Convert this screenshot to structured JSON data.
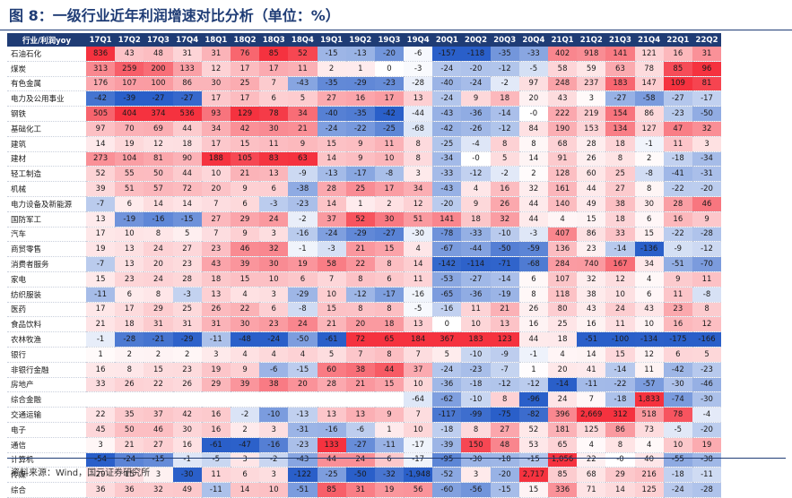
{
  "title": "图 8：一级行业近年利润增速对比分析（单位：%）",
  "corner_label": "行业/利润yoy",
  "source": "资料来源：Wind，国元证券研究所",
  "colors": {
    "header_bg": "#1f3c75",
    "pos_max": "#f5323f",
    "neg_max": "#2a5fc9"
  },
  "columns": [
    "17Q1",
    "17Q2",
    "17Q3",
    "17Q4",
    "18Q1",
    "18Q2",
    "18Q3",
    "18Q4",
    "19Q1",
    "19Q2",
    "19Q3",
    "19Q4",
    "20Q1",
    "20Q2",
    "20Q3",
    "20Q4",
    "21Q1",
    "21Q2",
    "21Q3",
    "21Q4",
    "22Q1",
    "22Q2"
  ],
  "rows": [
    {
      "name": "石油石化",
      "v": [
        "836",
        "43",
        "48",
        "31",
        "31",
        "76",
        "85",
        "52",
        "-15",
        "-13",
        "-20",
        "-6",
        "-157",
        "-118",
        "-35",
        "-33",
        "402",
        "918",
        "141",
        "121",
        "16",
        "31"
      ]
    },
    {
      "name": "煤炭",
      "v": [
        "313",
        "259",
        "200",
        "133",
        "12",
        "17",
        "17",
        "11",
        "2",
        "1",
        "0",
        "-3",
        "-24",
        "-20",
        "-12",
        "-5",
        "58",
        "59",
        "63",
        "78",
        "85",
        "96"
      ]
    },
    {
      "name": "有色金属",
      "v": [
        "176",
        "107",
        "100",
        "86",
        "30",
        "25",
        "7",
        "-43",
        "-35",
        "-29",
        "-23",
        "-28",
        "-40",
        "-24",
        "-2",
        "97",
        "248",
        "237",
        "183",
        "147",
        "109",
        "81"
      ]
    },
    {
      "name": "电力及公用事业",
      "v": [
        "-42",
        "-39",
        "-27",
        "-27",
        "17",
        "17",
        "6",
        "5",
        "27",
        "16",
        "17",
        "13",
        "-24",
        "9",
        "18",
        "20",
        "43",
        "3",
        "-27",
        "-58",
        "-27",
        "-17"
      ]
    },
    {
      "name": "钢铁",
      "v": [
        "505",
        "404",
        "374",
        "536",
        "93",
        "129",
        "78",
        "34",
        "-40",
        "-35",
        "-42",
        "-44",
        "-43",
        "-36",
        "-14",
        "-0",
        "222",
        "219",
        "154",
        "86",
        "-23",
        "-50"
      ]
    },
    {
      "name": "基础化工",
      "v": [
        "97",
        "70",
        "69",
        "44",
        "34",
        "42",
        "30",
        "21",
        "-24",
        "-22",
        "-25",
        "-68",
        "-42",
        "-26",
        "-12",
        "84",
        "190",
        "153",
        "134",
        "127",
        "47",
        "32"
      ]
    },
    {
      "name": "建筑",
      "v": [
        "14",
        "19",
        "12",
        "18",
        "17",
        "15",
        "11",
        "9",
        "15",
        "9",
        "11",
        "8",
        "-25",
        "-4",
        "8",
        "8",
        "68",
        "28",
        "18",
        "-1",
        "11",
        "3"
      ]
    },
    {
      "name": "建材",
      "v": [
        "273",
        "104",
        "81",
        "90",
        "188",
        "105",
        "83",
        "63",
        "14",
        "9",
        "10",
        "8",
        "-34",
        "-0",
        "5",
        "14",
        "91",
        "26",
        "8",
        "2",
        "-18",
        "-34"
      ]
    },
    {
      "name": "轻工制造",
      "v": [
        "52",
        "55",
        "50",
        "44",
        "10",
        "21",
        "13",
        "-9",
        "-13",
        "-17",
        "-8",
        "3",
        "-33",
        "-12",
        "-2",
        "2",
        "128",
        "60",
        "25",
        "-8",
        "-41",
        "-31"
      ]
    },
    {
      "name": "机械",
      "v": [
        "39",
        "51",
        "57",
        "72",
        "20",
        "9",
        "6",
        "-38",
        "28",
        "25",
        "17",
        "34",
        "-43",
        "4",
        "16",
        "32",
        "161",
        "44",
        "27",
        "8",
        "-22",
        "-20"
      ]
    },
    {
      "name": "电力设备及新能源",
      "v": [
        "-7",
        "6",
        "14",
        "14",
        "7",
        "6",
        "-3",
        "-23",
        "14",
        "1",
        "2",
        "12",
        "-20",
        "9",
        "26",
        "44",
        "140",
        "49",
        "38",
        "30",
        "28",
        "46"
      ]
    },
    {
      "name": "国防军工",
      "v": [
        "13",
        "-19",
        "-16",
        "-15",
        "27",
        "29",
        "24",
        "-2",
        "37",
        "52",
        "30",
        "51",
        "141",
        "18",
        "32",
        "44",
        "4",
        "15",
        "18",
        "6",
        "16",
        "9"
      ]
    },
    {
      "name": "汽车",
      "v": [
        "17",
        "10",
        "8",
        "5",
        "7",
        "9",
        "3",
        "-16",
        "-24",
        "-29",
        "-27",
        "-30",
        "-78",
        "-33",
        "-10",
        "-3",
        "407",
        "86",
        "33",
        "15",
        "-22",
        "-28"
      ]
    },
    {
      "name": "商贸零售",
      "v": [
        "19",
        "13",
        "24",
        "27",
        "23",
        "46",
        "32",
        "-1",
        "-3",
        "21",
        "15",
        "4",
        "-67",
        "-44",
        "-50",
        "-59",
        "136",
        "23",
        "-14",
        "-136",
        "-9",
        "-12"
      ]
    },
    {
      "name": "消费者服务",
      "v": [
        "-7",
        "13",
        "20",
        "23",
        "43",
        "39",
        "30",
        "19",
        "58",
        "22",
        "8",
        "14",
        "-142",
        "-114",
        "-71",
        "-68",
        "284",
        "740",
        "167",
        "34",
        "-51",
        "-70"
      ]
    },
    {
      "name": "家电",
      "v": [
        "15",
        "23",
        "24",
        "28",
        "18",
        "15",
        "10",
        "6",
        "7",
        "8",
        "6",
        "11",
        "-53",
        "-27",
        "-14",
        "6",
        "107",
        "32",
        "12",
        "4",
        "9",
        "11"
      ]
    },
    {
      "name": "纺织服装",
      "v": [
        "-11",
        "6",
        "8",
        "-3",
        "13",
        "4",
        "3",
        "-29",
        "10",
        "-12",
        "-17",
        "-16",
        "-65",
        "-36",
        "-19",
        "8",
        "118",
        "38",
        "10",
        "6",
        "11",
        "-8"
      ]
    },
    {
      "name": "医药",
      "v": [
        "17",
        "17",
        "29",
        "25",
        "26",
        "22",
        "6",
        "-8",
        "15",
        "8",
        "8",
        "-5",
        "-16",
        "11",
        "21",
        "26",
        "80",
        "43",
        "24",
        "43",
        "23",
        "8"
      ]
    },
    {
      "name": "食品饮料",
      "v": [
        "21",
        "18",
        "31",
        "31",
        "31",
        "30",
        "23",
        "24",
        "21",
        "20",
        "18",
        "13",
        "0",
        "10",
        "13",
        "16",
        "25",
        "16",
        "11",
        "10",
        "16",
        "12"
      ]
    },
    {
      "name": "农林牧渔",
      "v": [
        "-1",
        "-28",
        "-21",
        "-29",
        "-11",
        "-48",
        "-24",
        "-50",
        "-61",
        "72",
        "65",
        "184",
        "367",
        "183",
        "123",
        "44",
        "18",
        "-51",
        "-100",
        "-134",
        "-175",
        "-166"
      ]
    },
    {
      "name": "银行",
      "v": [
        "1",
        "2",
        "2",
        "2",
        "3",
        "4",
        "4",
        "4",
        "5",
        "7",
        "8",
        "7",
        "5",
        "-10",
        "-9",
        "-1",
        "4",
        "14",
        "15",
        "12",
        "6",
        "5"
      ]
    },
    {
      "name": "非银行金融",
      "v": [
        "16",
        "8",
        "15",
        "23",
        "19",
        "9",
        "-6",
        "-15",
        "60",
        "38",
        "44",
        "37",
        "-24",
        "-23",
        "-7",
        "1",
        "20",
        "41",
        "-14",
        "11",
        "-42",
        "-23"
      ]
    },
    {
      "name": "房地产",
      "v": [
        "33",
        "26",
        "22",
        "26",
        "29",
        "39",
        "38",
        "20",
        "28",
        "21",
        "15",
        "10",
        "-36",
        "-18",
        "-12",
        "-12",
        "-14",
        "-11",
        "-22",
        "-57",
        "-30",
        "-46"
      ]
    },
    {
      "name": "综合金融",
      "v": [
        "",
        "",
        "",
        "",
        "",
        "",
        "",
        "",
        "",
        "",
        "",
        "-64",
        "-62",
        "-10",
        "8",
        "-96",
        "24",
        "7",
        "-18",
        "1,833",
        "-74",
        "-30"
      ]
    },
    {
      "name": "交通运输",
      "v": [
        "22",
        "35",
        "37",
        "42",
        "16",
        "-2",
        "-10",
        "-13",
        "13",
        "13",
        "9",
        "7",
        "-117",
        "-99",
        "-75",
        "-82",
        "396",
        "2,669",
        "312",
        "518",
        "78",
        "-4"
      ]
    },
    {
      "name": "电子",
      "v": [
        "45",
        "50",
        "46",
        "30",
        "16",
        "2",
        "3",
        "-31",
        "-16",
        "-6",
        "1",
        "10",
        "-18",
        "8",
        "27",
        "52",
        "181",
        "125",
        "86",
        "73",
        "-5",
        "-20"
      ]
    },
    {
      "name": "通信",
      "v": [
        "3",
        "21",
        "27",
        "16",
        "-61",
        "-47",
        "-16",
        "-23",
        "133",
        "-27",
        "-11",
        "-17",
        "-39",
        "150",
        "48",
        "53",
        "65",
        "4",
        "8",
        "4",
        "10",
        "19"
      ]
    },
    {
      "name": "计算机",
      "v": [
        "-54",
        "-24",
        "-15",
        "-1",
        "-5",
        "3",
        "-2",
        "-43",
        "44",
        "24",
        "6",
        "-17",
        "-95",
        "-30",
        "-18",
        "-15",
        "1,056",
        "22",
        "-0",
        "40",
        "-55",
        "-38"
      ]
    },
    {
      "name": "传媒",
      "v": [
        "29",
        "15",
        "3",
        "-30",
        "11",
        "6",
        "3",
        "-122",
        "-25",
        "-50",
        "-32",
        "-1,948",
        "-52",
        "3",
        "-20",
        "2,717",
        "85",
        "68",
        "29",
        "216",
        "-18",
        "-11"
      ]
    },
    {
      "name": "综合",
      "v": [
        "36",
        "36",
        "32",
        "49",
        "-11",
        "14",
        "10",
        "-51",
        "85",
        "31",
        "19",
        "56",
        "-60",
        "-56",
        "-15",
        "15",
        "336",
        "71",
        "14",
        "125",
        "-24",
        "-28"
      ]
    }
  ]
}
